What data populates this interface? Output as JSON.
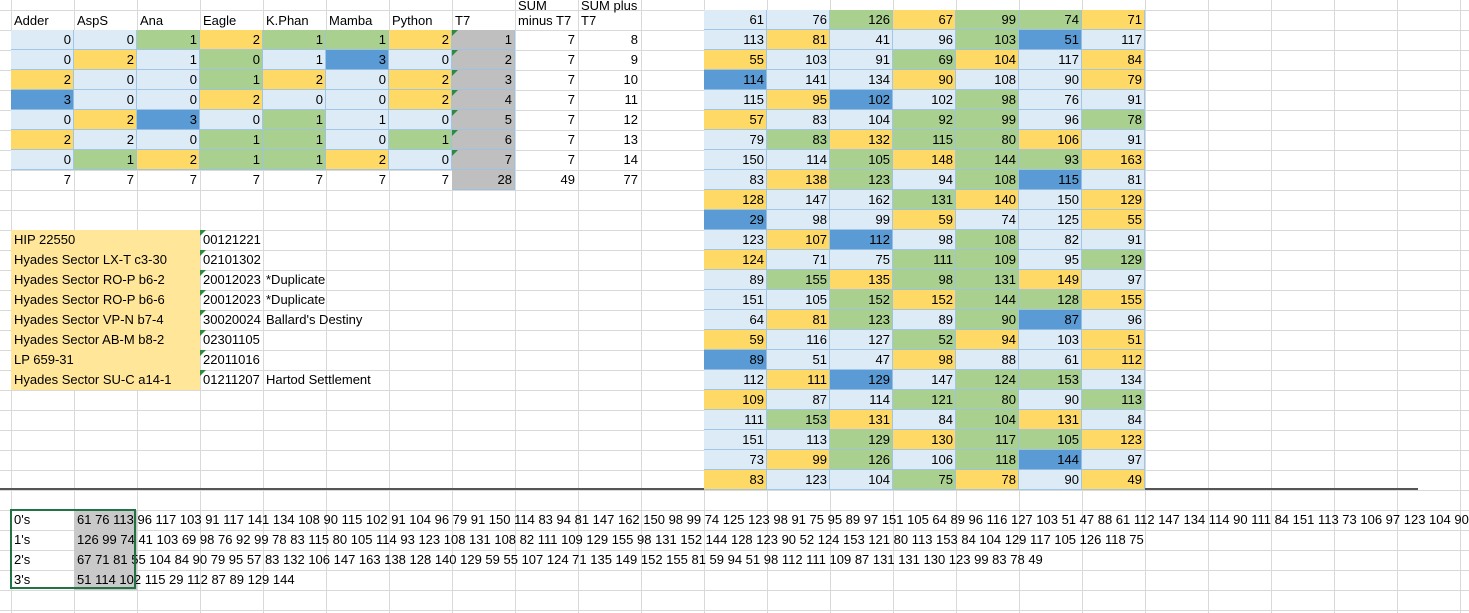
{
  "palette": {
    "l": "#ddebf7",
    "g": "#a9d08e",
    "y": "#ffd966",
    "b": "#5b9bd5"
  },
  "left_table": {
    "headers": [
      "Adder",
      "AspS",
      "Ana",
      "Eagle",
      "K.Phan",
      "Mamba",
      "Python",
      "T7",
      "SUM minus T7",
      "SUM plus T7"
    ],
    "rows": [
      [
        0,
        0,
        1,
        2,
        1,
        1,
        2,
        1,
        7,
        8
      ],
      [
        0,
        2,
        1,
        0,
        1,
        3,
        0,
        2,
        7,
        9
      ],
      [
        2,
        0,
        0,
        1,
        2,
        0,
        2,
        3,
        7,
        10
      ],
      [
        3,
        0,
        0,
        2,
        0,
        0,
        2,
        4,
        7,
        11
      ],
      [
        0,
        2,
        3,
        0,
        1,
        1,
        0,
        5,
        7,
        12
      ],
      [
        2,
        2,
        0,
        1,
        1,
        0,
        1,
        6,
        7,
        13
      ],
      [
        0,
        1,
        2,
        1,
        1,
        2,
        0,
        7,
        7,
        14
      ]
    ],
    "colors": [
      "llgyggy",
      "lylglbl",
      "yllgyly",
      "bllylly",
      "lyblgll",
      "yllggl g",
      "lgyggyl"
    ],
    "totals": [
      7,
      7,
      7,
      7,
      7,
      7,
      7,
      28,
      49,
      77
    ]
  },
  "right_table": {
    "rows": [
      [
        61,
        76,
        126,
        67,
        99,
        74,
        71
      ],
      [
        113,
        81,
        41,
        96,
        103,
        51,
        117
      ],
      [
        55,
        103,
        91,
        69,
        104,
        117,
        84
      ],
      [
        114,
        141,
        134,
        90,
        108,
        90,
        79
      ],
      [
        115,
        95,
        102,
        102,
        98,
        76,
        91
      ],
      [
        57,
        83,
        104,
        92,
        99,
        96,
        78
      ],
      [
        79,
        83,
        132,
        115,
        80,
        106,
        91
      ],
      [
        150,
        114,
        105,
        148,
        144,
        93,
        163
      ],
      [
        83,
        138,
        123,
        94,
        108,
        115,
        81
      ],
      [
        128,
        147,
        162,
        131,
        140,
        150,
        129
      ],
      [
        29,
        98,
        99,
        59,
        74,
        125,
        55
      ],
      [
        123,
        107,
        112,
        98,
        108,
        82,
        91
      ],
      [
        124,
        71,
        75,
        111,
        109,
        95,
        129
      ],
      [
        89,
        155,
        135,
        98,
        131,
        149,
        97
      ],
      [
        151,
        105,
        152,
        152,
        144,
        128,
        155
      ],
      [
        64,
        81,
        123,
        89,
        90,
        87,
        96
      ],
      [
        59,
        116,
        127,
        52,
        94,
        103,
        51
      ],
      [
        89,
        51,
        47,
        98,
        88,
        61,
        112
      ],
      [
        112,
        111,
        129,
        147,
        124,
        153,
        134
      ],
      [
        109,
        87,
        114,
        121,
        80,
        90,
        113
      ],
      [
        111,
        153,
        131,
        84,
        104,
        131,
        84
      ],
      [
        151,
        113,
        129,
        130,
        117,
        105,
        123
      ],
      [
        73,
        99,
        126,
        106,
        118,
        144,
        97
      ],
      [
        83,
        123,
        104,
        75,
        78,
        90,
        49
      ]
    ],
    "colors": [
      "llgyggy",
      "lyllgbl",
      "yllgyly",
      "bllylly",
      "lyblgll",
      "yllgglg",
      "lgyggyl",
      "llgyggy",
      "lyglgbl",
      "yllgyly",
      "bllylly",
      "lyblgll",
      "yllgglg",
      "lgyggyl",
      "llgyggy",
      "lyglgbl",
      "yllgyly",
      "bllylly",
      "lyblggl",
      "yllgglg",
      "lgylgyl",
      "llgyggy",
      "lyglgbl",
      "yllgyly"
    ]
  },
  "systems": [
    {
      "name": "HIP 22550",
      "code": "00121221"
    },
    {
      "name": "Hyades Sector LX-T c3-30",
      "code": "02101302"
    },
    {
      "name": "Hyades Sector RO-P b6-2",
      "code": "20012023",
      "note": "*Duplicate"
    },
    {
      "name": "Hyades Sector RO-P b6-6",
      "code": "20012023",
      "note": "*Duplicate"
    },
    {
      "name": "Hyades Sector VP-N b7-4",
      "code": "30020024",
      "note": "Ballard's Destiny"
    },
    {
      "name": "Hyades Sector AB-M b8-2",
      "code": "02301105"
    },
    {
      "name": "LP 659-31",
      "code": "22011016"
    },
    {
      "name": "Hyades Sector SU-C a14-1",
      "code": "01211207",
      "note": "Hartod Settlement"
    }
  ],
  "digit_rows": [
    {
      "label": "0's",
      "text": "61 76 113 96 117 103 91 117 141 134 108 90 115 102 91 104 96 79 91 150 114 83 94 81 147 162 150 98 99 74 125 123 98 91 75 95 89 97 151 105 64 89 96 116 127 103 51 47 88 61 112 147 134 114 90 111 84 151 113 73 106 97 123 104 90"
    },
    {
      "label": "1's",
      "text": "126 99 74 41 103 69 98 76 92 99 78 83 115 80 105 114 93 123 108 131 108 82 111 109 129 155 98 131 152 144 128 123 90 52 124 153 121 80 113 153 84 104 129 117 105 126 118 75"
    },
    {
      "label": "2's",
      "text": "67 71 81 55 104 84 90 79 95 57 83 132 106 147 163 138 128 140 129 59 55 107 124 71 135 149 152 155 81 59 94 51 98 112 111 109 87 131 131 130 123 99 83 78 49"
    },
    {
      "label": "3's",
      "text": "51 114 102 115 29 112 87 89 129 144"
    }
  ]
}
